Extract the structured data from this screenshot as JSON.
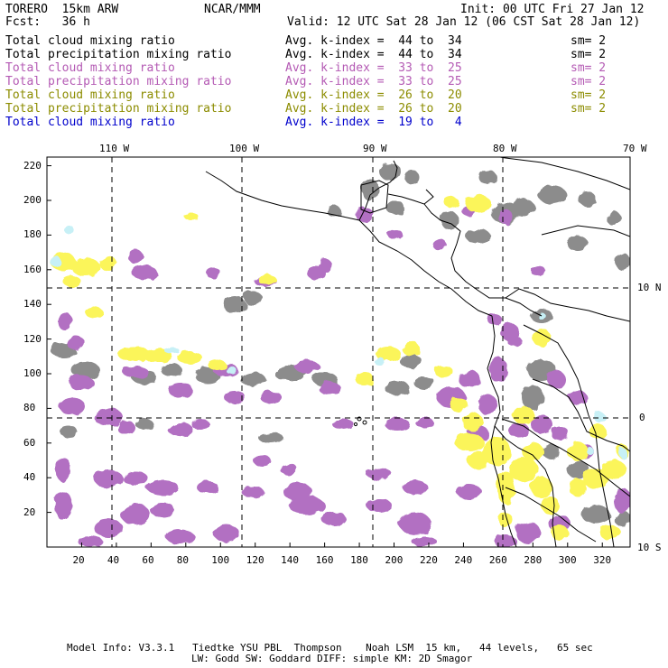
{
  "header": {
    "model": "TORERO  15km ARW",
    "center": "NCAR/MMM",
    "init": "Init: 00 UTC Fri 27 Jan 12",
    "fcst": "Fcst:   36 h",
    "valid": "Valid: 12 UTC Sat 28 Jan 12 (06 CST Sat 28 Jan 12)"
  },
  "legend": [
    {
      "field": "Total cloud mixing ratio",
      "index": "Avg. k-index =  44 to  34",
      "sm": "sm= 2",
      "color": "#000000"
    },
    {
      "field": "Total precipitation mixing ratio",
      "index": "Avg. k-index =  44 to  34",
      "sm": "sm= 2",
      "color": "#000000"
    },
    {
      "field": "Total cloud mixing ratio",
      "index": "Avg. k-index =  33 to  25",
      "sm": "sm= 2",
      "color": "#b45ab4"
    },
    {
      "field": "Total precipitation mixing ratio",
      "index": "Avg. k-index =  33 to  25",
      "sm": "sm= 2",
      "color": "#b45ab4"
    },
    {
      "field": "Total cloud mixing ratio",
      "index": "Avg. k-index =  26 to  20",
      "sm": "sm= 2",
      "color": "#8c8c00"
    },
    {
      "field": "Total precipitation mixing ratio",
      "index": "Avg. k-index =  26 to  20",
      "sm": "sm= 2",
      "color": "#8c8c00"
    },
    {
      "field": "Total cloud mixing ratio",
      "index": "Avg. k-index =  19 to   4",
      "sm": "",
      "color": "#0000cc"
    }
  ],
  "map": {
    "lon_labels": [
      "110 W",
      "100 W",
      "90 W",
      "80 W",
      "70 W"
    ],
    "lat_labels": [
      "10 N",
      "0",
      "10 S"
    ],
    "y_ticks": [
      "220",
      "200",
      "180",
      "160",
      "140",
      "120",
      "100",
      "80",
      "60",
      "40",
      "20"
    ],
    "x_ticks": [
      "20",
      "40",
      "60",
      "80",
      "100",
      "120",
      "140",
      "160",
      "180",
      "200",
      "220",
      "240",
      "260",
      "280",
      "300",
      "320"
    ],
    "colors": {
      "cloud_gray": "#8c8c8c",
      "purple": "#b26fc2",
      "yellow": "#fbf55a",
      "cyan": "#c7f0f6",
      "coast": "#000000"
    }
  },
  "footer": {
    "line1": "Model Info: V3.3.1   Tiedtke YSU PBL  Thompson    Noah LSM  15 km,   44 levels,   65 sec",
    "line2": "LW: Godd SW: Goddard DIFF: simple KM: 2D Smagor"
  }
}
